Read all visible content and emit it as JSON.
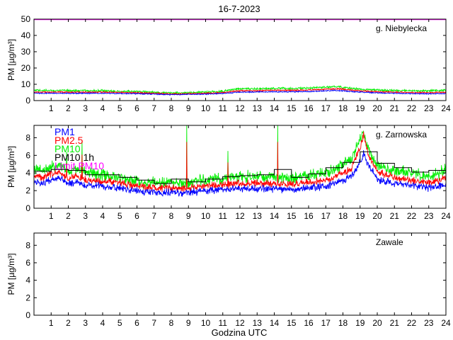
{
  "figure": {
    "title": "16-7-2023",
    "xlabel": "Godzina UTC",
    "colors": {
      "pm1": "#0000ff",
      "pm25": "#ff0000",
      "pm10": "#00ee00",
      "pm10_1h": "#000000",
      "limit": "#ff00ff",
      "axis": "#000000"
    }
  },
  "chart_data": [
    {
      "type": "line",
      "station": "g. Niebylecka",
      "xlabel": "",
      "ylabel": "PM [µg/m³]",
      "xlim": [
        0,
        24
      ],
      "ylim": [
        0,
        50
      ],
      "xticks": [
        1,
        2,
        3,
        4,
        5,
        6,
        7,
        8,
        9,
        10,
        11,
        12,
        13,
        14,
        15,
        16,
        17,
        18,
        19,
        20,
        21,
        22,
        23,
        24
      ],
      "yticks": [
        0,
        10,
        20,
        30,
        40,
        50
      ],
      "limit_pm10": 50,
      "legend": null,
      "profile_x": [
        0,
        2,
        4,
        6,
        7,
        8,
        9,
        10,
        11,
        11.5,
        12,
        13,
        14,
        15,
        16,
        17,
        17.5,
        18,
        19,
        20,
        21,
        22,
        23,
        24
      ],
      "series": [
        {
          "name": "PM1",
          "baseline": [
            4.5,
            4.5,
            4.5,
            4.2,
            4.0,
            3.6,
            3.8,
            4.0,
            4.3,
            4.8,
            5.2,
            5.3,
            5.4,
            5.4,
            5.6,
            6.0,
            6.2,
            6.0,
            5.2,
            4.7,
            4.5,
            4.3,
            4.2,
            4.3
          ],
          "noise": 0.4
        },
        {
          "name": "PM2.5",
          "baseline": [
            5.2,
            5.2,
            5.2,
            4.8,
            4.5,
            4.1,
            4.2,
            4.5,
            4.9,
            5.6,
            6.0,
            6.1,
            6.3,
            6.3,
            6.5,
            7.0,
            7.2,
            7.0,
            6.0,
            5.4,
            5.2,
            5.0,
            4.9,
            5.0
          ],
          "noise": 0.5
        },
        {
          "name": "PM10",
          "baseline": [
            6.2,
            6.2,
            6.0,
            5.5,
            5.2,
            4.7,
            4.8,
            5.2,
            5.7,
            6.8,
            7.3,
            7.2,
            7.4,
            7.4,
            7.6,
            8.2,
            8.6,
            8.1,
            7.0,
            6.4,
            6.2,
            6.0,
            6.0,
            6.3
          ],
          "noise": 0.8
        }
      ]
    },
    {
      "type": "line",
      "station": "g. Zarnowska",
      "xlabel": "",
      "ylabel": "PM [µg/m³]",
      "xlim": [
        0,
        24
      ],
      "ylim": [
        0,
        9.4
      ],
      "xticks": [
        1,
        2,
        3,
        4,
        5,
        6,
        7,
        8,
        9,
        10,
        11,
        12,
        13,
        14,
        15,
        16,
        17,
        18,
        19,
        20,
        21,
        22,
        23,
        24
      ],
      "yticks": [
        0,
        2,
        4,
        6,
        8
      ],
      "legend": {
        "placement": "top-left",
        "entries": [
          "PM1",
          "PM2.5",
          "PM10",
          "PM10 1h",
          "Limit PM10"
        ]
      },
      "profile_x": [
        0,
        0.5,
        1,
        1.5,
        2,
        2.5,
        3,
        4,
        5,
        6,
        7,
        8,
        9,
        10,
        11,
        12,
        13,
        14,
        15,
        16,
        17,
        18,
        18.5,
        19,
        19.2,
        19.5,
        20,
        20.5,
        21,
        22,
        23,
        23.5,
        24
      ],
      "series": [
        {
          "name": "PM1",
          "baseline": [
            3.0,
            2.8,
            3.2,
            3.4,
            2.8,
            3.0,
            2.6,
            2.5,
            2.3,
            2.0,
            1.8,
            1.8,
            1.8,
            2.0,
            2.1,
            2.2,
            2.3,
            2.2,
            2.1,
            2.3,
            2.5,
            3.2,
            3.6,
            5.2,
            6.3,
            4.8,
            3.3,
            3.0,
            2.8,
            2.6,
            2.3,
            2.5,
            2.8
          ],
          "noise": 0.5
        },
        {
          "name": "PM2.5",
          "baseline": [
            3.7,
            3.5,
            3.9,
            4.1,
            3.4,
            3.7,
            3.2,
            3.1,
            2.9,
            2.5,
            2.3,
            2.3,
            2.3,
            2.6,
            2.7,
            2.8,
            2.9,
            2.8,
            2.7,
            2.9,
            3.1,
            4.0,
            4.5,
            7.0,
            8.3,
            6.0,
            4.2,
            3.8,
            3.5,
            3.2,
            2.9,
            3.1,
            3.5
          ],
          "noise": 0.5
        },
        {
          "name": "PM10",
          "baseline": [
            4.4,
            4.3,
            4.7,
            4.9,
            4.2,
            4.5,
            4.0,
            3.8,
            3.5,
            3.1,
            2.9,
            2.9,
            2.9,
            3.3,
            3.4,
            3.6,
            3.6,
            3.6,
            3.5,
            3.7,
            4.0,
            5.0,
            5.6,
            7.8,
            8.8,
            6.6,
            5.0,
            4.6,
            4.3,
            4.0,
            3.6,
            3.9,
            4.4
          ],
          "noise": 0.8
        }
      ],
      "spikes": [
        {
          "x": 1.9,
          "value": 6.4
        },
        {
          "x": 2.8,
          "value": 7.6
        },
        {
          "x": 8.9,
          "value": 9.4
        },
        {
          "x": 11.3,
          "value": 6.5
        },
        {
          "x": 14.2,
          "value": 9.4
        }
      ],
      "pm10_1h": {
        "hours": [
          0,
          1,
          2,
          3,
          4,
          5,
          6,
          7,
          8,
          9,
          10,
          11,
          12,
          13,
          14,
          15,
          16,
          17,
          18,
          19,
          20,
          21,
          22,
          23
        ],
        "values": [
          4.2,
          4.4,
          4.3,
          3.8,
          3.8,
          3.5,
          3.2,
          2.8,
          3.3,
          3.0,
          3.3,
          3.6,
          3.7,
          3.8,
          4.4,
          3.5,
          3.9,
          4.6,
          5.2,
          6.4,
          5.1,
          4.6,
          4.1,
          4.3
        ]
      }
    },
    {
      "type": "line",
      "station": "Zawale",
      "xlabel": "Godzina UTC",
      "ylabel": "PM [µg/m³]",
      "xlim": [
        0,
        24
      ],
      "ylim": [
        0,
        9.4
      ],
      "xticks": [
        1,
        2,
        3,
        4,
        5,
        6,
        7,
        8,
        9,
        10,
        11,
        12,
        13,
        14,
        15,
        16,
        17,
        18,
        19,
        20,
        21,
        22,
        23,
        24
      ],
      "yticks": [
        0,
        2,
        4,
        6,
        8
      ],
      "legend": null,
      "series": []
    }
  ]
}
